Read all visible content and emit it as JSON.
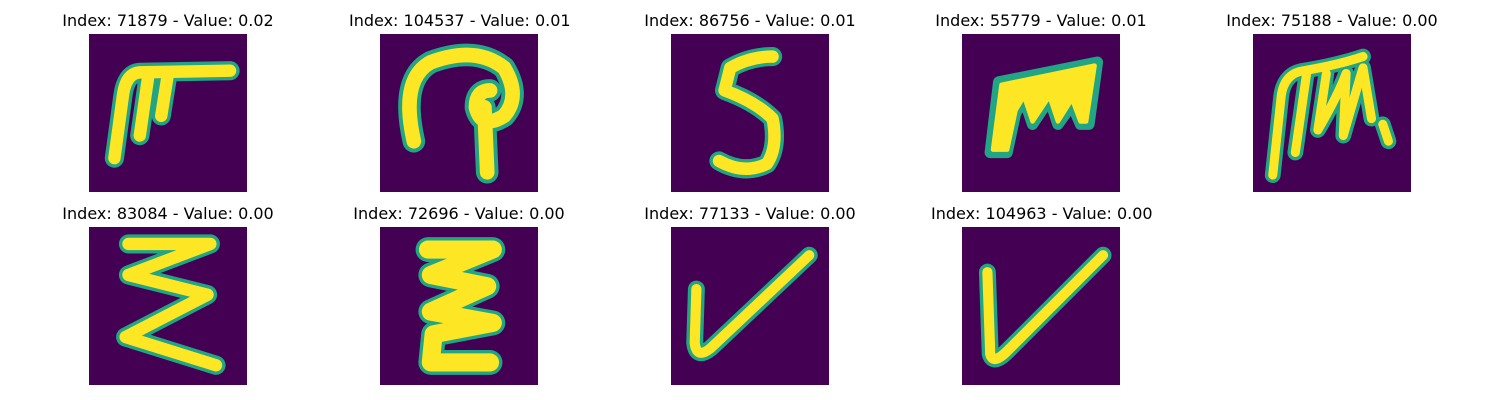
{
  "figure": {
    "panels": [
      {
        "title": "Index: 71879 - Value: 0.02",
        "glyph": "glyph-1"
      },
      {
        "title": "Index: 104537 - Value: 0.01",
        "glyph": "glyph-2"
      },
      {
        "title": "Index: 86756 - Value: 0.01",
        "glyph": "glyph-3"
      },
      {
        "title": "Index: 55779 - Value: 0.01",
        "glyph": "glyph-4"
      },
      {
        "title": "Index: 75188 - Value: 0.00",
        "glyph": "glyph-5"
      },
      {
        "title": "Index: 83084 - Value: 0.00",
        "glyph": "glyph-6"
      },
      {
        "title": "Index: 72696 - Value: 0.00",
        "glyph": "glyph-7"
      },
      {
        "title": "Index: 77133 - Value: 0.00",
        "glyph": "glyph-8"
      },
      {
        "title": "Index: 104963 - Value: 0.00",
        "glyph": "glyph-9"
      }
    ],
    "colors": {
      "background": "#440154",
      "stroke": "#fde725",
      "edge": "#21a585"
    }
  }
}
